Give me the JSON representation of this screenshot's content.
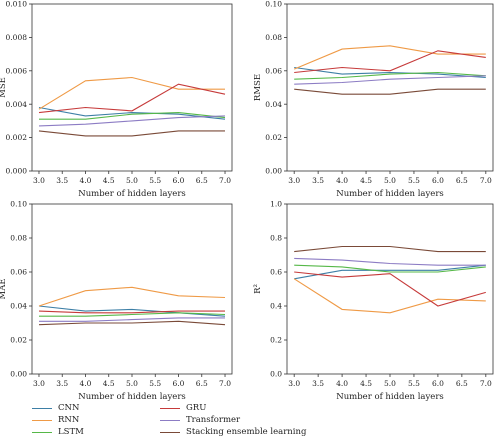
{
  "chart_data": [
    {
      "type": "line",
      "x": [
        3,
        4,
        5,
        6,
        7
      ],
      "xlabel": "Number of hidden layers",
      "ylabel": "MSE",
      "xlim": [
        2.85,
        7.15
      ],
      "ylim": [
        0.0,
        0.01
      ],
      "xticks": [
        "3.0",
        "3.5",
        "4.0",
        "4.5",
        "5.0",
        "5.5",
        "6.0",
        "6.5",
        "7.0"
      ],
      "yticks": [
        "0.000",
        "0.002",
        "0.004",
        "0.006",
        "0.008",
        "0.010"
      ],
      "series": [
        {
          "name": "CNN",
          "values": [
            0.0038,
            0.0033,
            0.0035,
            0.0034,
            0.0031
          ]
        },
        {
          "name": "RNN",
          "values": [
            0.0037,
            0.0054,
            0.0056,
            0.0049,
            0.0049
          ]
        },
        {
          "name": "LSTM",
          "values": [
            0.0031,
            0.0031,
            0.0034,
            0.0035,
            0.0032
          ]
        },
        {
          "name": "GRU",
          "values": [
            0.0035,
            0.0038,
            0.0036,
            0.0052,
            0.0046
          ]
        },
        {
          "name": "Transformer",
          "values": [
            0.0027,
            0.0028,
            0.003,
            0.0032,
            0.0033
          ]
        },
        {
          "name": "Stacking ensemble learning",
          "values": [
            0.0024,
            0.0021,
            0.0021,
            0.0024,
            0.0024
          ]
        }
      ]
    },
    {
      "type": "line",
      "x": [
        3,
        4,
        5,
        6,
        7
      ],
      "xlabel": "Number of hidden layers",
      "ylabel": "RMSE",
      "xlim": [
        2.85,
        7.15
      ],
      "ylim": [
        0.0,
        0.1
      ],
      "xticks": [
        "3.0",
        "3.5",
        "4.0",
        "4.5",
        "5.0",
        "5.5",
        "6.0",
        "6.5",
        "7.0"
      ],
      "yticks": [
        "0.00",
        "0.02",
        "0.04",
        "0.06",
        "0.08",
        "0.10"
      ],
      "series": [
        {
          "name": "CNN",
          "values": [
            0.062,
            0.058,
            0.059,
            0.058,
            0.056
          ]
        },
        {
          "name": "RNN",
          "values": [
            0.061,
            0.073,
            0.075,
            0.07,
            0.07
          ]
        },
        {
          "name": "LSTM",
          "values": [
            0.055,
            0.056,
            0.058,
            0.059,
            0.057
          ]
        },
        {
          "name": "GRU",
          "values": [
            0.059,
            0.062,
            0.06,
            0.072,
            0.068
          ]
        },
        {
          "name": "Transformer",
          "values": [
            0.052,
            0.053,
            0.055,
            0.056,
            0.057
          ]
        },
        {
          "name": "Stacking ensemble learning",
          "values": [
            0.049,
            0.046,
            0.046,
            0.049,
            0.049
          ]
        }
      ]
    },
    {
      "type": "line",
      "x": [
        3,
        4,
        5,
        6,
        7
      ],
      "xlabel": "Number of hidden layers",
      "ylabel": "MAE",
      "xlim": [
        2.85,
        7.15
      ],
      "ylim": [
        0.0,
        0.1
      ],
      "xticks": [
        "3.0",
        "3.5",
        "4.0",
        "4.5",
        "5.0",
        "5.5",
        "6.0",
        "6.5",
        "7.0"
      ],
      "yticks": [
        "0.00",
        "0.02",
        "0.04",
        "0.06",
        "0.08",
        "0.10"
      ],
      "series": [
        {
          "name": "CNN",
          "values": [
            0.04,
            0.037,
            0.038,
            0.036,
            0.034
          ]
        },
        {
          "name": "RNN",
          "values": [
            0.04,
            0.049,
            0.051,
            0.046,
            0.045
          ]
        },
        {
          "name": "LSTM",
          "values": [
            0.034,
            0.034,
            0.035,
            0.036,
            0.035
          ]
        },
        {
          "name": "GRU",
          "values": [
            0.037,
            0.036,
            0.036,
            0.037,
            0.037
          ]
        },
        {
          "name": "Transformer",
          "values": [
            0.031,
            0.031,
            0.032,
            0.033,
            0.033
          ]
        },
        {
          "name": "Stacking ensemble learning",
          "values": [
            0.029,
            0.03,
            0.03,
            0.031,
            0.029
          ]
        }
      ]
    },
    {
      "type": "line",
      "x": [
        3,
        4,
        5,
        6,
        7
      ],
      "xlabel": "Number of hidden layers",
      "ylabel": "R²",
      "xlim": [
        2.85,
        7.15
      ],
      "ylim": [
        0.0,
        1.0
      ],
      "xticks": [
        "3.0",
        "3.5",
        "4.0",
        "4.5",
        "5.0",
        "5.5",
        "6.0",
        "6.5",
        "7.0"
      ],
      "yticks": [
        "0.0",
        "0.2",
        "0.4",
        "0.6",
        "0.8",
        "1.0"
      ],
      "series": [
        {
          "name": "CNN",
          "values": [
            0.56,
            0.61,
            0.61,
            0.61,
            0.64
          ]
        },
        {
          "name": "RNN",
          "values": [
            0.56,
            0.38,
            0.36,
            0.44,
            0.43
          ]
        },
        {
          "name": "LSTM",
          "values": [
            0.64,
            0.63,
            0.6,
            0.6,
            0.63
          ]
        },
        {
          "name": "GRU",
          "values": [
            0.6,
            0.57,
            0.59,
            0.4,
            0.48
          ]
        },
        {
          "name": "Transformer",
          "values": [
            0.68,
            0.67,
            0.65,
            0.64,
            0.64
          ]
        },
        {
          "name": "Stacking ensemble learning",
          "values": [
            0.72,
            0.75,
            0.75,
            0.72,
            0.72
          ]
        }
      ]
    }
  ],
  "colors": {
    "CNN": "#3d7fa6",
    "RNN": "#ef9a46",
    "LSTM": "#56b848",
    "GRU": "#c63a3a",
    "Transformer": "#8c7cc4",
    "Stacking ensemble learning": "#7a4a38"
  },
  "legend": [
    {
      "label": "CNN",
      "color": "#3d7fa6"
    },
    {
      "label": "RNN",
      "color": "#ef9a46"
    },
    {
      "label": "LSTM",
      "color": "#56b848"
    },
    {
      "label": "GRU",
      "color": "#c63a3a"
    },
    {
      "label": "Transformer",
      "color": "#8c7cc4"
    },
    {
      "label": "Stacking ensemble learning",
      "color": "#7a4a38"
    }
  ]
}
